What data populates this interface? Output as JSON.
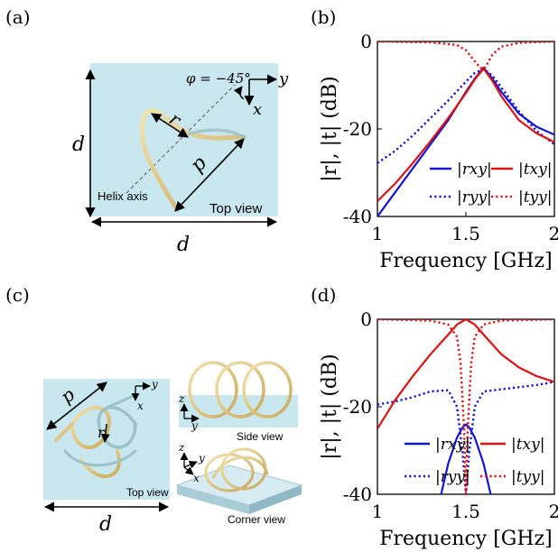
{
  "panel_labels": {
    "a": "(a)",
    "b": "(b)",
    "c": "(c)",
    "d": "(d)"
  },
  "diagram_a": {
    "d_left": "d",
    "d_bottom": "d",
    "phi": "φ = −45°",
    "axis_y": "y",
    "axis_x": "x",
    "r": "r",
    "p": "p",
    "helix_axis": "Helix axis",
    "top_view": "Top view"
  },
  "diagram_c": {
    "p": "p",
    "r": "r",
    "d": "d",
    "top_view": "Top view",
    "side_view": "Side view",
    "corner_view": "Corner view",
    "axis_x": "x",
    "axis_y": "y",
    "axis_z": "z"
  },
  "colors": {
    "blue": "#1515d8",
    "red": "#e01010",
    "plate": "#c9e7ef"
  },
  "chart_data": [
    {
      "type": "line",
      "panel": "b",
      "xlabel": "Frequency [GHz]",
      "ylabel": "|r|, |t| (dB)",
      "xlim": [
        1,
        2
      ],
      "ylim": [
        -40,
        0
      ],
      "xticks": [
        "1",
        "1.5",
        "2"
      ],
      "yticks": [
        "0",
        "-20",
        "-40"
      ],
      "legend_placement": "lower-right",
      "series": [
        {
          "name": "|rxy|",
          "style": "solid",
          "color": "#1515d8",
          "x": [
            1.0,
            1.1,
            1.2,
            1.3,
            1.4,
            1.5,
            1.55,
            1.6,
            1.65,
            1.7,
            1.8,
            1.9,
            2.0
          ],
          "y": [
            -40.0,
            -34.5,
            -29.0,
            -23.5,
            -18.0,
            -11.5,
            -8.5,
            -6.0,
            -8.5,
            -11.5,
            -16.5,
            -19.5,
            -21.3
          ]
        },
        {
          "name": "|ryy|",
          "style": "dotted",
          "color": "#1515d8",
          "x": [
            1.0,
            1.1,
            1.2,
            1.3,
            1.4,
            1.5,
            1.55,
            1.6,
            1.65,
            1.7,
            1.8,
            1.9,
            2.0
          ],
          "y": [
            -27.8,
            -25.0,
            -21.5,
            -17.5,
            -13.5,
            -9.2,
            -7.2,
            -6.3,
            -7.8,
            -10.5,
            -16.0,
            -20.5,
            -23.5
          ]
        },
        {
          "name": "|txy|",
          "style": "solid",
          "color": "#e01010",
          "x": [
            1.0,
            1.1,
            1.2,
            1.3,
            1.4,
            1.5,
            1.55,
            1.6,
            1.65,
            1.7,
            1.8,
            1.9,
            2.0
          ],
          "y": [
            -36.5,
            -32.5,
            -27.8,
            -22.8,
            -17.5,
            -11.8,
            -8.7,
            -6.2,
            -9.0,
            -12.5,
            -18.0,
            -21.0,
            -23.0
          ]
        },
        {
          "name": "|tyy|",
          "style": "dotted",
          "color": "#e01010",
          "x": [
            1.0,
            1.3,
            1.45,
            1.5,
            1.55,
            1.58,
            1.6,
            1.62,
            1.65,
            1.7,
            1.8,
            2.0
          ],
          "y": [
            0,
            -0.2,
            -0.8,
            -2.0,
            -4.5,
            -6.0,
            -6.3,
            -5.2,
            -3.0,
            -1.2,
            -0.3,
            0
          ]
        }
      ]
    },
    {
      "type": "line",
      "panel": "d",
      "xlabel": "Frequency [GHz]",
      "ylabel": "|r|, |t| (dB)",
      "xlim": [
        1,
        2
      ],
      "ylim": [
        -40,
        0
      ],
      "xticks": [
        "1",
        "1.5",
        "2"
      ],
      "yticks": [
        "0",
        "-20",
        "-40"
      ],
      "legend_placement": "lower",
      "series": [
        {
          "name": "|rxy|",
          "style": "solid",
          "color": "#1515d8",
          "x": [
            1.36,
            1.4,
            1.45,
            1.48,
            1.5,
            1.52,
            1.55,
            1.6,
            1.64
          ],
          "y": [
            -40.0,
            -33.0,
            -27.0,
            -24.8,
            -24.0,
            -24.8,
            -27.0,
            -33.0,
            -40.0
          ]
        },
        {
          "name": "|ryy|",
          "style": "dotted",
          "color": "#1515d8",
          "x": [
            1.0,
            1.1,
            1.2,
            1.3,
            1.4,
            1.45,
            1.48,
            1.5,
            1.52,
            1.55,
            1.6,
            1.7,
            1.8,
            1.9,
            2.0
          ],
          "y": [
            -19.5,
            -18.8,
            -17.8,
            -16.5,
            -16.2,
            -20.0,
            -30.0,
            -40.0,
            -30.0,
            -20.0,
            -16.5,
            -16.0,
            -15.5,
            -15.0,
            -14.3
          ]
        },
        {
          "name": "|txy|",
          "style": "solid",
          "color": "#e01010",
          "x": [
            1.0,
            1.1,
            1.2,
            1.3,
            1.4,
            1.45,
            1.5,
            1.55,
            1.6,
            1.7,
            1.8,
            1.9,
            2.0
          ],
          "y": [
            -25.0,
            -18.5,
            -13.0,
            -8.0,
            -3.5,
            -1.2,
            0,
            -1.2,
            -3.5,
            -8.0,
            -11.0,
            -13.0,
            -14.3
          ]
        },
        {
          "name": "|tyy|",
          "style": "dotted",
          "color": "#e01010",
          "x": [
            1.0,
            1.3,
            1.4,
            1.45,
            1.47,
            1.49,
            1.5,
            1.51,
            1.53,
            1.55,
            1.6,
            1.7,
            2.0
          ],
          "y": [
            0,
            -0.3,
            -1.2,
            -4.0,
            -10.0,
            -25.0,
            -40.0,
            -25.0,
            -10.0,
            -4.0,
            -1.2,
            -0.3,
            0
          ]
        }
      ]
    }
  ]
}
